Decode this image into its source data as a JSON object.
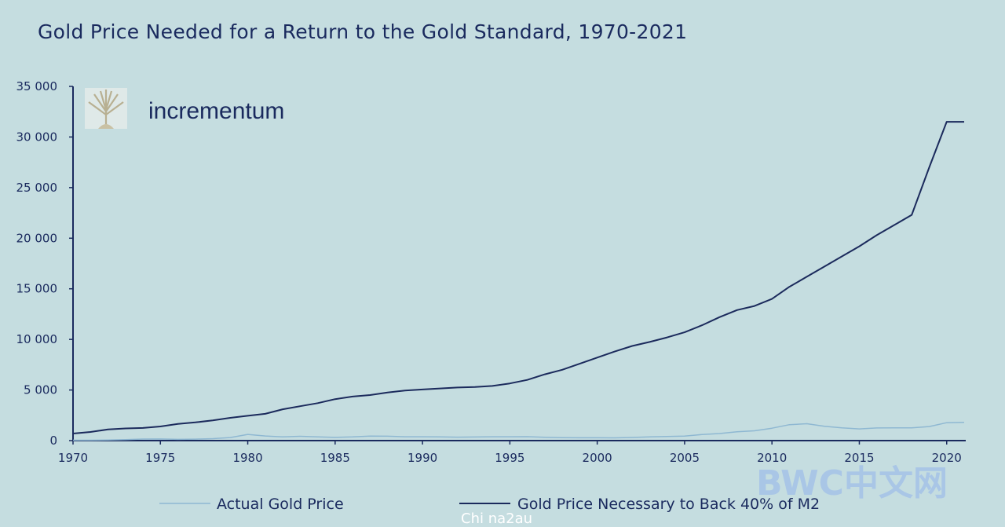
{
  "chart_data": {
    "type": "line",
    "title": "Gold Price Needed for a Return to the Gold Standard, 1970-2021",
    "xlabel": "",
    "ylabel": "",
    "xlim": [
      1970,
      2021
    ],
    "ylim": [
      0,
      35000
    ],
    "x_ticks": [
      1970,
      1975,
      1980,
      1985,
      1990,
      1995,
      2000,
      2005,
      2010,
      2015,
      2020
    ],
    "x_tick_labels": [
      "1970",
      "1975",
      "1980",
      "1985",
      "1990",
      "1995",
      "2000",
      "2005",
      "2010",
      "2015",
      "2020"
    ],
    "y_ticks": [
      0,
      5000,
      10000,
      15000,
      20000,
      25000,
      30000,
      35000
    ],
    "y_tick_labels": [
      "0",
      "5 000",
      "10 000",
      "15 000",
      "20 000",
      "25 000",
      "30 000",
      "35 000"
    ],
    "grid": false,
    "legend_position": "bottom",
    "series": [
      {
        "name": "Actual Gold Price",
        "color": "#8fb8d2",
        "x": [
          1970,
          1971,
          1972,
          1973,
          1974,
          1975,
          1976,
          1977,
          1978,
          1979,
          1980,
          1981,
          1982,
          1983,
          1984,
          1985,
          1986,
          1987,
          1988,
          1989,
          1990,
          1991,
          1992,
          1993,
          1994,
          1995,
          1996,
          1997,
          1998,
          1999,
          2000,
          2001,
          2002,
          2003,
          2004,
          2005,
          2006,
          2007,
          2008,
          2009,
          2010,
          2011,
          2012,
          2013,
          2014,
          2015,
          2016,
          2017,
          2018,
          2019,
          2020,
          2021
        ],
        "values": [
          36,
          41,
          58,
          97,
          159,
          161,
          125,
          148,
          194,
          306,
          615,
          460,
          376,
          424,
          361,
          317,
          368,
          447,
          437,
          381,
          383,
          362,
          344,
          360,
          384,
          384,
          388,
          331,
          294,
          279,
          279,
          271,
          310,
          363,
          409,
          444,
          604,
          695,
          872,
          972,
          1225,
          1572,
          1669,
          1411,
          1266,
          1160,
          1251,
          1257,
          1268,
          1393,
          1770,
          1799
        ]
      },
      {
        "name": "Gold Price Necessary to Back 40% of M2",
        "color": "#1b2a5c",
        "x": [
          1970,
          1971,
          1972,
          1973,
          1974,
          1975,
          1976,
          1977,
          1978,
          1979,
          1980,
          1981,
          1982,
          1983,
          1984,
          1985,
          1986,
          1987,
          1988,
          1989,
          1990,
          1991,
          1992,
          1993,
          1994,
          1995,
          1996,
          1997,
          1998,
          1999,
          2000,
          2001,
          2002,
          2003,
          2004,
          2005,
          2006,
          2007,
          2008,
          2009,
          2010,
          2011,
          2012,
          2013,
          2014,
          2015,
          2016,
          2017,
          2018,
          2019,
          2020,
          2021
        ],
        "values": [
          700,
          850,
          1100,
          1200,
          1250,
          1400,
          1650,
          1800,
          2000,
          2250,
          2450,
          2650,
          3100,
          3400,
          3700,
          4100,
          4350,
          4500,
          4750,
          4950,
          5050,
          5150,
          5250,
          5300,
          5400,
          5650,
          6000,
          6550,
          7000,
          7600,
          8200,
          8800,
          9350,
          9750,
          10200,
          10700,
          11400,
          12200,
          12900,
          13300,
          14000,
          15200,
          16200,
          17200,
          18200,
          19200,
          20300,
          21300,
          22300,
          27000,
          31500,
          31500
        ]
      }
    ]
  },
  "legend": [
    {
      "label": "Actual Gold Price"
    },
    {
      "label": "Gold Price Necessary to Back 40% of M2"
    }
  ],
  "brand": {
    "text": "incrementum",
    "logo_icon": "tree-logo-icon"
  },
  "watermarks": {
    "corner": "BWC中文网",
    "bottom": "Chi na2au"
  }
}
